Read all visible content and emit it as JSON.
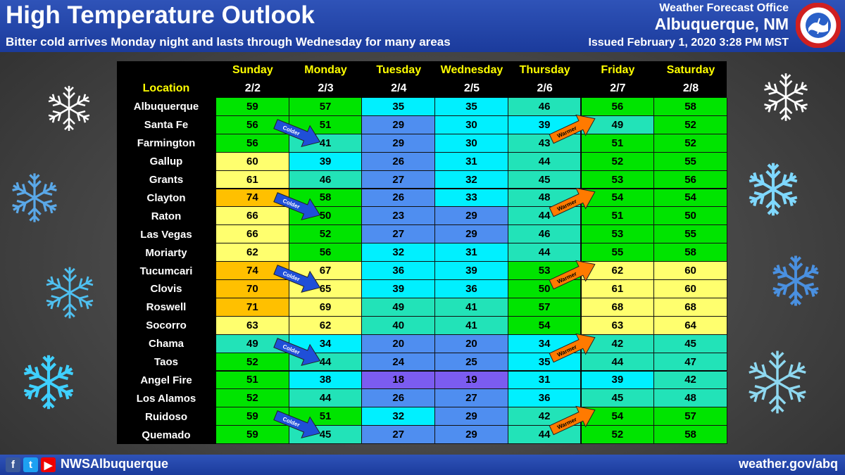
{
  "header": {
    "title": "High Temperature Outlook",
    "subtitle": "Bitter cold arrives Monday night and lasts through Wednesday for many areas",
    "office": "Weather Forecast Office",
    "city": "Albuquerque, NM",
    "issued": "Issued February 1, 2020 3:28 PM MST"
  },
  "table": {
    "location_label": "Location",
    "days": [
      {
        "name": "Sunday",
        "date": "2/2"
      },
      {
        "name": "Monday",
        "date": "2/3"
      },
      {
        "name": "Tuesday",
        "date": "2/4"
      },
      {
        "name": "Wednesday",
        "date": "2/5"
      },
      {
        "name": "Thursday",
        "date": "2/6"
      },
      {
        "name": "Friday",
        "date": "2/7"
      },
      {
        "name": "Saturday",
        "date": "2/8"
      }
    ],
    "rows": [
      {
        "location": "Albuquerque",
        "temps": [
          59,
          57,
          35,
          35,
          46,
          56,
          58
        ]
      },
      {
        "location": "Santa Fe",
        "temps": [
          56,
          51,
          29,
          30,
          39,
          49,
          52
        ]
      },
      {
        "location": "Farmington",
        "temps": [
          56,
          41,
          29,
          30,
          43,
          51,
          52
        ]
      },
      {
        "location": "Gallup",
        "temps": [
          60,
          39,
          26,
          31,
          44,
          52,
          55
        ]
      },
      {
        "location": "Grants",
        "temps": [
          61,
          46,
          27,
          32,
          45,
          53,
          56
        ]
      },
      {
        "location": "Clayton",
        "temps": [
          74,
          58,
          26,
          33,
          48,
          54,
          54
        ]
      },
      {
        "location": "Raton",
        "temps": [
          66,
          50,
          23,
          29,
          44,
          51,
          50
        ]
      },
      {
        "location": "Las Vegas",
        "temps": [
          66,
          52,
          27,
          29,
          46,
          53,
          55
        ]
      },
      {
        "location": "Moriarty",
        "temps": [
          62,
          56,
          32,
          31,
          44,
          55,
          58
        ]
      },
      {
        "location": "Tucumcari",
        "temps": [
          74,
          67,
          36,
          39,
          53,
          62,
          60
        ]
      },
      {
        "location": "Clovis",
        "temps": [
          70,
          65,
          39,
          36,
          50,
          61,
          60
        ]
      },
      {
        "location": "Roswell",
        "temps": [
          71,
          69,
          49,
          41,
          57,
          68,
          68
        ]
      },
      {
        "location": "Socorro",
        "temps": [
          63,
          62,
          40,
          41,
          54,
          63,
          64
        ]
      },
      {
        "location": "Chama",
        "temps": [
          49,
          34,
          20,
          20,
          34,
          42,
          45
        ]
      },
      {
        "location": "Taos",
        "temps": [
          52,
          44,
          24,
          25,
          35,
          44,
          47
        ]
      },
      {
        "location": "Angel Fire",
        "temps": [
          51,
          38,
          18,
          19,
          31,
          39,
          42
        ]
      },
      {
        "location": "Los Alamos",
        "temps": [
          52,
          44,
          26,
          27,
          36,
          45,
          48
        ]
      },
      {
        "location": "Ruidoso",
        "temps": [
          59,
          51,
          32,
          29,
          42,
          54,
          57
        ]
      },
      {
        "location": "Quemado",
        "temps": [
          59,
          45,
          27,
          29,
          44,
          52,
          58
        ]
      }
    ],
    "arrows": {
      "colder_label": "Colder",
      "warmer_label": "Warmer",
      "colder_rows": [
        1,
        5,
        9,
        13,
        17
      ],
      "warmer_rows": [
        1,
        5,
        9,
        13,
        17
      ]
    }
  },
  "colors": {
    "header_text": "#ffff00",
    "location_text": "#ffff00",
    "temp_18_19": "#7b5cf0",
    "temp_20_29": "#4f8ef0",
    "temp_30_39": "#00f0ff",
    "temp_40_49": "#22e3b8",
    "temp_50_59": "#00e400",
    "temp_60_69": "#ffff6e",
    "temp_70_79": "#ffc000",
    "colder_arrow": "#1f4fd8",
    "warmer_arrow": "#ff7a00"
  },
  "footer": {
    "handle": "NWSAlbuquerque",
    "website": "weather.gov/abq",
    "social_icons": [
      "facebook-icon",
      "twitter-icon",
      "youtube-icon"
    ]
  }
}
